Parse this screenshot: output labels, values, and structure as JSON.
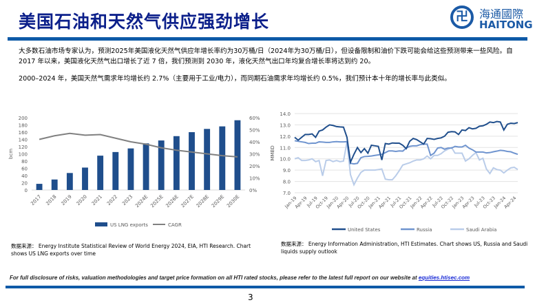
{
  "header": {
    "title": "美国石油和天然气供应强劲增长",
    "logo_cn": "海通國際",
    "logo_en": "HAITONG"
  },
  "body": {
    "paragraph1": "大多数石油市场专家认为，预测2025年美国液化天然气供应年增长率约为30万桶/日（2024年为30万桶/日），但设备限制和油价下跌可能会给这些预测带来一些风险。自 2017 年以来，美国液化天然气出口增长了近 7 倍，我们预测到 2030 年，液化天然气出口年均复合增长率将达到约 20。",
    "paragraph2": "2000–2024 年，美国天然气需求年均增长约 2.7%（主要用于工业/电力），而同期石油需求年均增长约 0.5%，我们预计本十年的增长率与此类似。"
  },
  "chart_data": [
    {
      "type": "bar",
      "categories": [
        "2017",
        "2018",
        "2019",
        "2020",
        "2021",
        "2022",
        "2023",
        "2024E",
        "2025E",
        "2026E",
        "2027E",
        "2028E",
        "2029E",
        "2030E"
      ],
      "series": [
        {
          "name": "US LNG exports",
          "type": "bar",
          "axis": "left",
          "color": "#1f4e8c",
          "values": [
            17,
            29,
            47,
            62,
            95,
            105,
            115,
            129,
            137,
            149,
            160,
            169,
            176,
            193
          ]
        },
        {
          "name": "CAGR",
          "type": "line",
          "axis": "right",
          "color": "#808080",
          "values": [
            42,
            45,
            47,
            45.5,
            46,
            43,
            40,
            38,
            35,
            33,
            31.5,
            30,
            28.5,
            27.5
          ]
        }
      ],
      "ylabel": "bcm",
      "ylim": [
        0,
        200
      ],
      "yticks": [
        "0",
        "20",
        "40",
        "60",
        "80",
        "100",
        "120",
        "140",
        "160",
        "180",
        "200"
      ],
      "y2lim": [
        0,
        60
      ],
      "y2ticks": [
        "0%",
        "10%",
        "20%",
        "30%",
        "40%",
        "50%",
        "60%"
      ],
      "grid": false,
      "legend": "bottom",
      "source": "数据来源：  Energy Institute Statistical Review of World Energy 2024, EIA, HTI Research. Chart shows US LNG exports over time"
    },
    {
      "type": "line",
      "x_start": "Jan-19",
      "x_end": "May-24",
      "xticks": [
        "Jan-19",
        "Apr-19",
        "Jul-19",
        "Oct-19",
        "Jan-20",
        "Apr-20",
        "Jul-20",
        "Oct-20",
        "Jan-21",
        "Apr-21",
        "Jul-21",
        "Oct-21",
        "Jan-22",
        "Apr-22",
        "Jul-22",
        "Oct-22",
        "Jan-23",
        "Apr-23",
        "Jul-23",
        "Oct-23",
        "Jan-24",
        "Apr-24"
      ],
      "ylabel": "MMBD",
      "ylim": [
        7,
        14
      ],
      "yticks": [
        "7.0",
        "8.0",
        "9.0",
        "10.0",
        "11.0",
        "12.0",
        "13.0",
        "14.0"
      ],
      "grid": true,
      "legend": "bottom",
      "series": [
        {
          "name": "United States",
          "color": "#1f4e8c",
          "values": [
            11.9,
            11.65,
            11.9,
            12.15,
            12.15,
            12.2,
            11.9,
            12.45,
            12.55,
            12.8,
            13.0,
            12.95,
            12.85,
            12.82,
            12.8,
            11.9,
            9.7,
            10.4,
            11.0,
            10.55,
            10.9,
            10.5,
            11.2,
            11.15,
            11.1,
            9.9,
            11.35,
            11.3,
            11.4,
            11.38,
            11.38,
            11.2,
            10.9,
            11.55,
            11.8,
            11.7,
            11.5,
            11.3,
            11.8,
            11.78,
            11.72,
            11.8,
            11.85,
            12.0,
            12.35,
            12.4,
            12.38,
            12.15,
            12.55,
            12.5,
            12.75,
            12.65,
            12.7,
            12.88,
            12.92,
            13.05,
            13.25,
            13.2,
            13.3,
            13.25,
            12.55,
            13.05,
            13.15,
            13.12,
            13.2
          ]
        },
        {
          "name": "Russia",
          "color": "#6f94cf",
          "values": [
            11.6,
            11.55,
            11.5,
            11.45,
            11.35,
            11.38,
            11.38,
            11.5,
            11.48,
            11.45,
            11.45,
            11.5,
            11.52,
            11.5,
            11.5,
            11.52,
            9.6,
            9.55,
            9.6,
            10.1,
            10.2,
            10.22,
            10.25,
            10.3,
            10.35,
            10.4,
            10.55,
            10.7,
            10.7,
            10.65,
            10.7,
            10.68,
            10.95,
            11.1,
            11.15,
            11.15,
            11.25,
            11.3,
            11.3,
            10.3,
            10.5,
            10.95,
            11.0,
            10.85,
            10.95,
            10.95,
            11.1,
            11.05,
            11.05,
            11.2,
            10.95,
            10.8,
            10.6,
            10.6,
            10.6,
            10.52,
            10.55,
            10.62,
            10.68,
            10.75,
            10.72,
            10.65,
            10.62,
            10.5,
            10.4
          ]
        },
        {
          "name": "Saudi Arabia",
          "color": "#b9cce9",
          "values": [
            10.0,
            10.1,
            9.85,
            9.85,
            9.9,
            10.0,
            9.75,
            9.85,
            8.5,
            9.85,
            9.9,
            9.75,
            9.85,
            9.75,
            9.8,
            11.5,
            8.6,
            7.7,
            8.3,
            8.8,
            9.0,
            9.0,
            9.0,
            9.0,
            9.05,
            9.1,
            8.2,
            8.15,
            8.15,
            8.5,
            8.95,
            9.45,
            9.55,
            9.65,
            9.8,
            9.9,
            9.9,
            10.0,
            10.25,
            10.0,
            10.3,
            10.3,
            10.45,
            10.7,
            10.85,
            11.0,
            10.5,
            10.5,
            10.5,
            9.8,
            10.0,
            10.3,
            10.55,
            9.9,
            10.05,
            9.1,
            8.7,
            9.2,
            9.05,
            9.0,
            8.75,
            9.0,
            9.2,
            9.25,
            9.05
          ]
        }
      ],
      "source": "数据来源：  Energy Information Administration, HTI Estimates. Chart shows US, Russia and Saudi liquids supply outlook"
    }
  ],
  "footer": {
    "disclaimer": "For full disclosure of risks, valuation methodologies and target price formation on all HTI rated stocks, please refer to the latest full report on our website at ",
    "link": "equities.htisec.com",
    "page": "3"
  }
}
